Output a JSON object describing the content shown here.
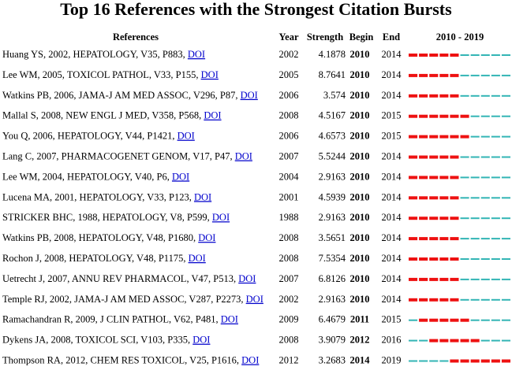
{
  "title": "Top 16 References with the Strongest Citation Bursts",
  "headers": {
    "references": "References",
    "year": "Year",
    "strength": "Strength",
    "begin": "Begin",
    "end": "End",
    "range": "2010 - 2019"
  },
  "colors": {
    "burst": "#ee1111",
    "normal": "#33b5b5",
    "link": "#0000cc"
  },
  "chart_data": {
    "type": "table",
    "title": "Top 16 References with the Strongest Citation Bursts",
    "columns": [
      "References",
      "Year",
      "Strength",
      "Begin",
      "End",
      "2010 - 2019"
    ],
    "timeline": {
      "start": 2010,
      "end": 2019
    },
    "rows": [
      {
        "ref": "Huang YS, 2002, HEPATOLOGY, V35, P883,",
        "link": "DOI",
        "year": "2002",
        "strength": "4.1878",
        "begin": "2010",
        "end": "2014"
      },
      {
        "ref": "Lee WM, 2005, TOXICOL PATHOL, V33, P155,",
        "link": "DOI",
        "year": "2005",
        "strength": "8.7641",
        "begin": "2010",
        "end": "2014"
      },
      {
        "ref": "Watkins PB, 2006, JAMA-J AM MED ASSOC, V296, P87,",
        "link": "DOI",
        "year": "2006",
        "strength": "3.574",
        "begin": "2010",
        "end": "2014"
      },
      {
        "ref": "Mallal S, 2008, NEW ENGL J MED, V358, P568,",
        "link": "DOI",
        "year": "2008",
        "strength": "4.5167",
        "begin": "2010",
        "end": "2015"
      },
      {
        "ref": "You Q, 2006, HEPATOLOGY, V44, P1421,",
        "link": "DOI",
        "year": "2006",
        "strength": "4.6573",
        "begin": "2010",
        "end": "2015"
      },
      {
        "ref": "Lang C, 2007, PHARMACOGENET GENOM, V17, P47,",
        "link": "DOI",
        "year": "2007",
        "strength": "5.5244",
        "begin": "2010",
        "end": "2014"
      },
      {
        "ref": "Lee WM, 2004, HEPATOLOGY, V40, P6,",
        "link": "DOI",
        "year": "2004",
        "strength": "2.9163",
        "begin": "2010",
        "end": "2014"
      },
      {
        "ref": "Lucena MA, 2001, HEPATOLOGY, V33, P123,",
        "link": "DOI",
        "year": "2001",
        "strength": "4.5939",
        "begin": "2010",
        "end": "2014"
      },
      {
        "ref": "STRICKER BHC, 1988, HEPATOLOGY, V8, P599,",
        "link": "DOI",
        "year": "1988",
        "strength": "2.9163",
        "begin": "2010",
        "end": "2014"
      },
      {
        "ref": "Watkins PB, 2008, HEPATOLOGY, V48, P1680,",
        "link": "DOI",
        "year": "2008",
        "strength": "3.5651",
        "begin": "2010",
        "end": "2014"
      },
      {
        "ref": "Rochon J, 2008, HEPATOLOGY, V48, P1175,",
        "link": "DOI",
        "year": "2008",
        "strength": "7.5354",
        "begin": "2010",
        "end": "2014"
      },
      {
        "ref": "Uetrecht J, 2007, ANNU REV PHARMACOL, V47, P513,",
        "link": "DOI",
        "year": "2007",
        "strength": "6.8126",
        "begin": "2010",
        "end": "2014"
      },
      {
        "ref": "Temple RJ, 2002, JAMA-J AM MED ASSOC, V287, P2273,",
        "link": "DOI",
        "year": "2002",
        "strength": "2.9163",
        "begin": "2010",
        "end": "2014"
      },
      {
        "ref": "Ramachandran R, 2009, J CLIN PATHOL, V62, P481,",
        "link": "DOI",
        "year": "2009",
        "strength": "6.4679",
        "begin": "2011",
        "end": "2015"
      },
      {
        "ref": "Dykens JA, 2008, TOXICOL SCI, V103, P335,",
        "link": "DOI",
        "year": "2008",
        "strength": "3.9079",
        "begin": "2012",
        "end": "2016"
      },
      {
        "ref": "Thompson RA, 2012, CHEM RES TOXICOL, V25, P1616,",
        "link": "DOI",
        "year": "2012",
        "strength": "3.2683",
        "begin": "2014",
        "end": "2019"
      }
    ]
  }
}
